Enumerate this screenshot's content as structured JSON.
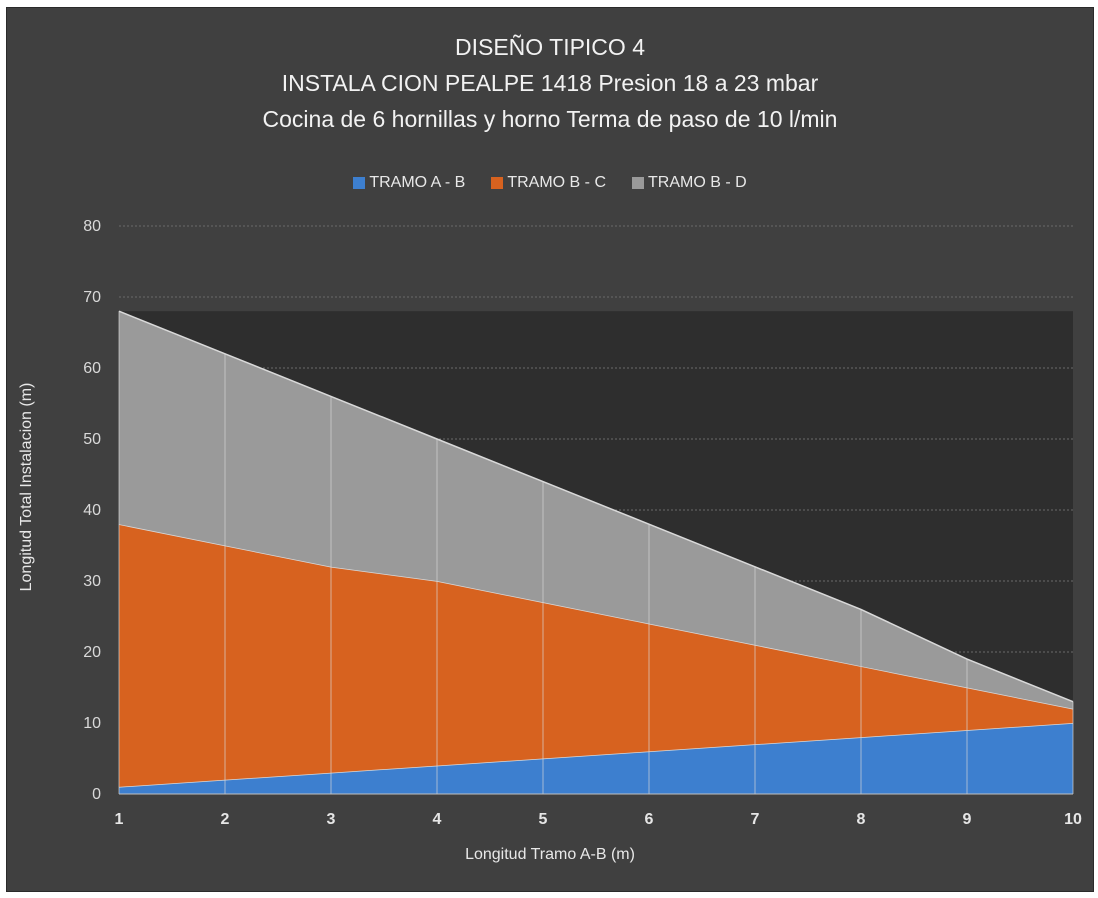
{
  "chart_data": {
    "type": "area",
    "title_lines": [
      "DISEÑO TIPICO 4",
      "INSTALA CION PEALPE 1418 Presion 18 a 23 mbar",
      "Cocina de 6 hornillas y horno Terma de paso de 10 l/min"
    ],
    "xlabel": "Longitud Tramo A-B (m)",
    "ylabel": "Longitud Total Instalacion (m)",
    "categories": [
      "1",
      "2",
      "3",
      "4",
      "5",
      "6",
      "7",
      "8",
      "9",
      "10"
    ],
    "yticks": [
      "0",
      "10",
      "20",
      "30",
      "40",
      "50",
      "60",
      "70",
      "80"
    ],
    "ylim": [
      0,
      80
    ],
    "stacked": true,
    "legend_position": "top",
    "grid": true,
    "series": [
      {
        "name": "TRAMO A - B",
        "values": [
          1,
          2,
          3,
          4,
          5,
          6,
          7,
          8,
          9,
          10
        ],
        "color": "#3d7fcf"
      },
      {
        "name": "TRAMO B - C",
        "values": [
          37,
          33,
          29,
          26,
          22,
          18,
          14,
          10,
          6,
          2
        ],
        "color": "#d7621f"
      },
      {
        "name": "TRAMO B - D",
        "values": [
          30,
          27,
          24,
          20,
          17,
          14,
          11,
          8,
          4,
          1
        ],
        "color": "#9a9a9a"
      }
    ]
  }
}
